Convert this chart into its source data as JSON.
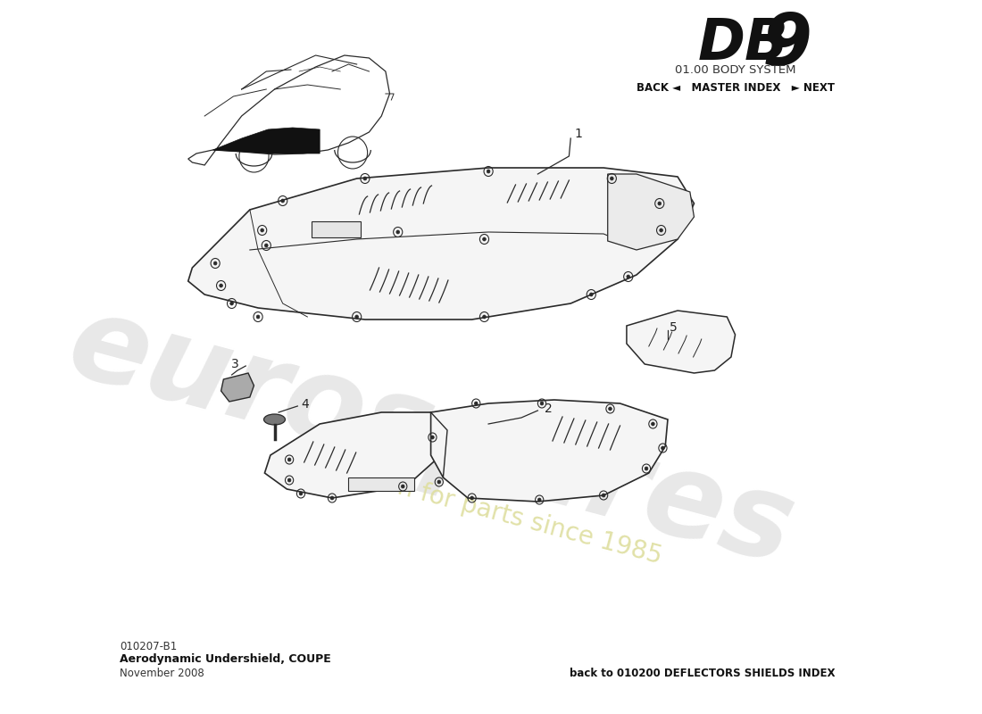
{
  "title_db9_text": "DB",
  "title_9_text": "9",
  "subtitle": "01.00 BODY SYSTEM",
  "nav_text": "BACK ◄   MASTER INDEX   ► NEXT",
  "part_number": "010207-B1",
  "part_name": "Aerodynamic Undershield, COUPE",
  "date": "November 2008",
  "footer_link": "back to 010200 DEFLECTORS SHIELDS INDEX",
  "bg_color": "#ffffff",
  "line_color": "#2a2a2a",
  "panel_fill": "#f5f5f5",
  "watermark_euro_color": "#cccccc",
  "watermark_text_color": "#dede9e",
  "label_color": "#222222",
  "part3_fill": "#999999",
  "bolt_fill": "#555555"
}
